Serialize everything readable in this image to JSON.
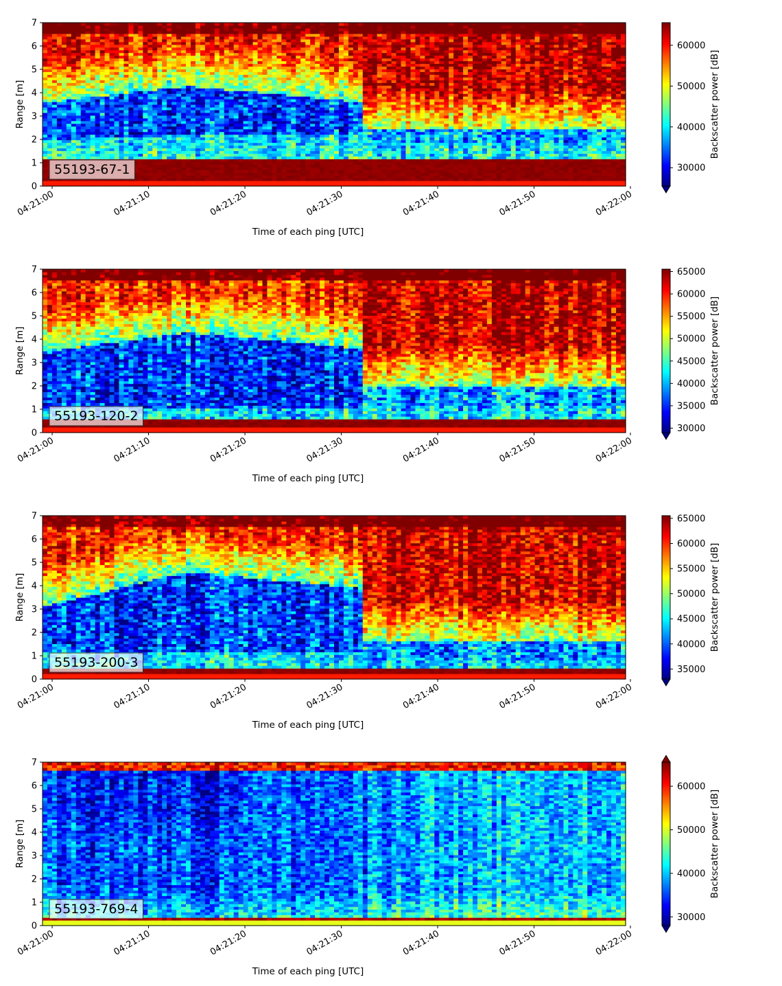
{
  "chart_data": [
    {
      "type": "heatmap",
      "panel_label": "55193-67-1",
      "xlabel": "Time of each ping [UTC]",
      "ylabel": "Range [m]",
      "xticks": [
        "04:21:00",
        "04:21:10",
        "04:21:20",
        "04:21:30",
        "04:21:40",
        "04:21:50",
        "04:22:00"
      ],
      "yticks": [
        0,
        1,
        2,
        3,
        4,
        5,
        6,
        7
      ],
      "ylim": [
        0,
        7
      ],
      "colorbar": {
        "label": "Backscatter power [dB]",
        "min": 25500,
        "max": 65535,
        "ticks": [
          30000,
          40000,
          50000,
          60000
        ],
        "extend": "min"
      },
      "structure": {
        "blue_band_start": [
          3.6,
          2.0
        ],
        "blue_band_peak": [
          4.3,
          2.2
        ],
        "transition_time_s": 32,
        "after_transition_blue": [
          1.9,
          2.4
        ],
        "surface_band": [
          0.25,
          1.15
        ]
      }
    },
    {
      "type": "heatmap",
      "panel_label": "55193-120-2",
      "xlabel": "Time of each ping [UTC]",
      "ylabel": "Range [m]",
      "xticks": [
        "04:21:00",
        "04:21:10",
        "04:21:20",
        "04:21:30",
        "04:21:40",
        "04:21:50",
        "04:22:00"
      ],
      "yticks": [
        0,
        1,
        2,
        3,
        4,
        5,
        6,
        7
      ],
      "ylim": [
        0,
        7
      ],
      "colorbar": {
        "label": "Backscatter power [dB]",
        "min": 29000,
        "max": 65535,
        "ticks": [
          30000,
          35000,
          40000,
          45000,
          50000,
          55000,
          60000,
          65000
        ],
        "extend": "min"
      },
      "structure": {
        "blue_band_start": [
          3.5,
          1.0
        ],
        "blue_band_peak": [
          4.3,
          1.0
        ],
        "transition_time_s": 32,
        "after_transition_blue": [
          1.2,
          2.0
        ],
        "surface_band": [
          0.25,
          0.6
        ]
      }
    },
    {
      "type": "heatmap",
      "panel_label": "55193-200-3",
      "xlabel": "Time of each ping [UTC]",
      "ylabel": "Range [m]",
      "xticks": [
        "04:21:00",
        "04:21:10",
        "04:21:20",
        "04:21:30",
        "04:21:40",
        "04:21:50",
        "04:22:00"
      ],
      "yticks": [
        0,
        1,
        2,
        3,
        4,
        5,
        6,
        7
      ],
      "ylim": [
        0,
        7
      ],
      "colorbar": {
        "label": "Backscatter power [dB]",
        "min": 33000,
        "max": 65535,
        "ticks": [
          35000,
          40000,
          45000,
          50000,
          55000,
          60000,
          65000
        ],
        "extend": "min"
      },
      "structure": {
        "blue_band_start": [
          3.2,
          1.2
        ],
        "blue_band_peak": [
          4.6,
          1.2
        ],
        "transition_time_s": 32,
        "after_transition_blue": [
          0.8,
          1.6
        ],
        "surface_band": [
          0.25,
          0.45
        ]
      }
    },
    {
      "type": "heatmap",
      "panel_label": "55193-769-4",
      "xlabel": "Time of each ping [UTC]",
      "ylabel": "Range [m]",
      "xticks": [
        "04:21:00",
        "04:21:10",
        "04:21:20",
        "04:21:30",
        "04:21:40",
        "04:21:50",
        "04:22:00"
      ],
      "yticks": [
        0,
        1,
        2,
        3,
        4,
        5,
        6,
        7
      ],
      "ylim": [
        0,
        7
      ],
      "colorbar": {
        "label": "Backscatter power [dB]",
        "min": 28000,
        "max": 65535,
        "ticks": [
          30000,
          40000,
          50000,
          60000
        ],
        "extend": "both"
      },
      "structure": {
        "mostly_blue": true,
        "top_red_band": [
          6.6,
          7.0
        ],
        "surface_band": [
          0.2,
          0.4
        ]
      }
    }
  ]
}
